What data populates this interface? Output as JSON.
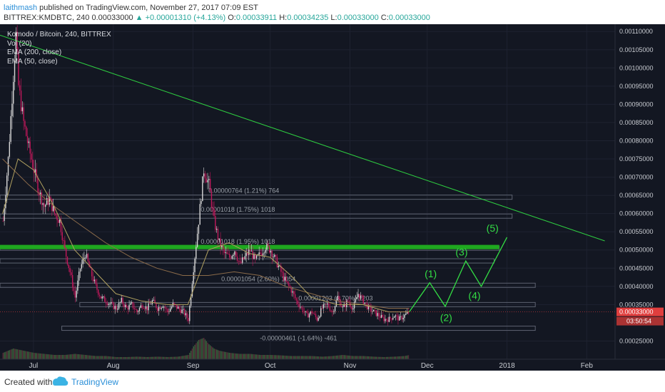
{
  "header": {
    "user": "laithmash",
    "published_text": "published on TradingView.com, November 27, 2017 07:09 EST",
    "symbol": "BITTREX:KMDBTC, 240",
    "last": "0.00033000",
    "change": "+0.00001310 (+4.13%)",
    "o_label": "O:",
    "o": "0.00033911",
    "h_label": "H:",
    "h": "0.00034235",
    "l_label": "L:",
    "l": "0.00033000",
    "c_label": "C:",
    "c": "0.00033000"
  },
  "footer": {
    "created_with": "Created with",
    "brand": "TradingView"
  },
  "colors": {
    "background": "#131722",
    "up_candle": "#d8d8d8",
    "down_candle": "#c2185b",
    "trendline": "#2ecc40",
    "wave": "#33dd44",
    "resistance_band": "#1fa81f",
    "ema200": "#8b6b4a",
    "ema50": "#b0a060",
    "last_price": "#e03e3e"
  },
  "chart_data": {
    "type": "candlestick",
    "title": "Komodo / Bitcoin, 240, BITTREX",
    "indicators": [
      "Vol (20)",
      "EMA (200, close)",
      "EMA (50, close)"
    ],
    "y_ticks": [
      "0.00110000",
      "0.00105000",
      "0.00100000",
      "0.00095000",
      "0.00090000",
      "0.00085000",
      "0.00080000",
      "0.00075000",
      "0.00070000",
      "0.00065000",
      "0.00060000",
      "0.00055000",
      "0.00050000",
      "0.00045000",
      "0.00040000",
      "0.00035000",
      "0.00025000"
    ],
    "ylim": [
      0.0002,
      0.00112
    ],
    "x_ticks": [
      {
        "label": "Jul",
        "day": 12
      },
      {
        "label": "Aug",
        "day": 43
      },
      {
        "label": "Sep",
        "day": 74
      },
      {
        "label": "Oct",
        "day": 104
      },
      {
        "label": "Nov",
        "day": 135
      },
      {
        "label": "Dec",
        "day": 165
      },
      {
        "label": "2018",
        "day": 196
      },
      {
        "label": "Feb",
        "day": 227
      }
    ],
    "xlim": [
      -1,
      238
    ],
    "price_series": [
      [
        0,
        0.00058
      ],
      [
        2,
        0.00075
      ],
      [
        4,
        0.00098
      ],
      [
        5,
        0.00109
      ],
      [
        6,
        0.00095
      ],
      [
        8,
        0.00085
      ],
      [
        10,
        0.00078
      ],
      [
        12,
        0.00072
      ],
      [
        14,
        0.00066
      ],
      [
        16,
        0.00062
      ],
      [
        18,
        0.00064
      ],
      [
        20,
        0.0006
      ],
      [
        22,
        0.00058
      ],
      [
        24,
        0.0005
      ],
      [
        26,
        0.00044
      ],
      [
        28,
        0.00037
      ],
      [
        30,
        0.00045
      ],
      [
        32,
        0.00049
      ],
      [
        34,
        0.00044
      ],
      [
        36,
        0.0004
      ],
      [
        38,
        0.00037
      ],
      [
        40,
        0.00036
      ],
      [
        42,
        0.00035
      ],
      [
        44,
        0.00034
      ],
      [
        46,
        0.00036
      ],
      [
        48,
        0.00034
      ],
      [
        50,
        0.00035
      ],
      [
        52,
        0.00033
      ],
      [
        54,
        0.00035
      ],
      [
        56,
        0.00034
      ],
      [
        58,
        0.00036
      ],
      [
        60,
        0.00034
      ],
      [
        62,
        0.00035
      ],
      [
        64,
        0.00033
      ],
      [
        66,
        0.00035
      ],
      [
        68,
        0.00034
      ],
      [
        70,
        0.00033
      ],
      [
        72,
        0.00031
      ],
      [
        74,
        0.00045
      ],
      [
        76,
        0.00058
      ],
      [
        78,
        0.00072
      ],
      [
        80,
        0.00068
      ],
      [
        82,
        0.00058
      ],
      [
        84,
        0.00052
      ],
      [
        86,
        0.00049
      ],
      [
        88,
        0.00048
      ],
      [
        90,
        0.0005
      ],
      [
        92,
        0.00046
      ],
      [
        94,
        0.00048
      ],
      [
        96,
        0.0005
      ],
      [
        98,
        0.00047
      ],
      [
        100,
        0.00049
      ],
      [
        102,
        0.00051
      ],
      [
        104,
        0.0005
      ],
      [
        106,
        0.00047
      ],
      [
        108,
        0.00044
      ],
      [
        110,
        0.00041
      ],
      [
        112,
        0.00039
      ],
      [
        114,
        0.00036
      ],
      [
        116,
        0.00034
      ],
      [
        118,
        0.00032
      ],
      [
        120,
        0.00033
      ],
      [
        122,
        0.00031
      ],
      [
        124,
        0.00034
      ],
      [
        126,
        0.00035
      ],
      [
        128,
        0.00033
      ],
      [
        130,
        0.00037
      ],
      [
        132,
        0.00034
      ],
      [
        134,
        0.00036
      ],
      [
        136,
        0.00034
      ],
      [
        138,
        0.00038
      ],
      [
        140,
        0.00036
      ],
      [
        142,
        0.00034
      ],
      [
        144,
        0.00033
      ],
      [
        146,
        0.00032
      ],
      [
        148,
        0.00031
      ],
      [
        150,
        0.00031
      ],
      [
        152,
        0.00032
      ],
      [
        154,
        0.00031
      ],
      [
        156,
        0.00032
      ],
      [
        158,
        0.00033
      ]
    ],
    "ema200": [
      [
        0,
        0.00075
      ],
      [
        10,
        0.00068
      ],
      [
        20,
        0.00062
      ],
      [
        30,
        0.00057
      ],
      [
        40,
        0.00052
      ],
      [
        50,
        0.00048
      ],
      [
        60,
        0.00045
      ],
      [
        70,
        0.00043
      ],
      [
        80,
        0.00043
      ],
      [
        90,
        0.00044
      ],
      [
        100,
        0.00043
      ],
      [
        110,
        0.0004
      ],
      [
        120,
        0.00038
      ],
      [
        130,
        0.00036
      ],
      [
        140,
        0.00035
      ],
      [
        150,
        0.00034
      ],
      [
        158,
        0.00034
      ]
    ],
    "ema50": [
      [
        0,
        0.0006
      ],
      [
        6,
        0.00075
      ],
      [
        12,
        0.00072
      ],
      [
        20,
        0.00062
      ],
      [
        28,
        0.0005
      ],
      [
        36,
        0.00044
      ],
      [
        44,
        0.00038
      ],
      [
        54,
        0.00036
      ],
      [
        64,
        0.00035
      ],
      [
        72,
        0.00035
      ],
      [
        80,
        0.0005
      ],
      [
        88,
        0.00052
      ],
      [
        96,
        0.00049
      ],
      [
        104,
        0.00048
      ],
      [
        112,
        0.00043
      ],
      [
        120,
        0.00037
      ],
      [
        130,
        0.00035
      ],
      [
        140,
        0.00035
      ],
      [
        150,
        0.00033
      ],
      [
        158,
        0.00033
      ]
    ],
    "volume_series": [
      [
        0,
        0.3
      ],
      [
        4,
        0.5
      ],
      [
        8,
        0.4
      ],
      [
        12,
        0.3
      ],
      [
        16,
        0.25
      ],
      [
        20,
        0.2
      ],
      [
        24,
        0.2
      ],
      [
        28,
        0.25
      ],
      [
        32,
        0.2
      ],
      [
        36,
        0.15
      ],
      [
        40,
        0.15
      ],
      [
        44,
        0.1
      ],
      [
        48,
        0.1
      ],
      [
        52,
        0.12
      ],
      [
        56,
        0.1
      ],
      [
        60,
        0.12
      ],
      [
        64,
        0.1
      ],
      [
        68,
        0.12
      ],
      [
        72,
        0.2
      ],
      [
        74,
        0.6
      ],
      [
        76,
        0.9
      ],
      [
        78,
        1.0
      ],
      [
        80,
        0.7
      ],
      [
        82,
        0.5
      ],
      [
        84,
        0.4
      ],
      [
        88,
        0.3
      ],
      [
        92,
        0.25
      ],
      [
        96,
        0.25
      ],
      [
        100,
        0.2
      ],
      [
        104,
        0.2
      ],
      [
        108,
        0.18
      ],
      [
        112,
        0.15
      ],
      [
        116,
        0.15
      ],
      [
        120,
        0.15
      ],
      [
        124,
        0.12
      ],
      [
        128,
        0.15
      ],
      [
        132,
        0.2
      ],
      [
        136,
        0.15
      ],
      [
        140,
        0.15
      ],
      [
        144,
        0.12
      ],
      [
        148,
        0.1
      ],
      [
        152,
        0.12
      ],
      [
        156,
        0.15
      ],
      [
        158,
        0.2
      ]
    ],
    "trendline": {
      "from": [
        -1,
        0.00109
      ],
      "to": [
        234,
        0.000525
      ]
    },
    "resistance_band": {
      "from_day": -1,
      "to_day": 193,
      "low": 0.000502,
      "high": 0.000514
    },
    "fib_levels": [
      {
        "price": 0.000645,
        "from_day": -1,
        "to_day": 198,
        "label": "0.00000764 (1.21%) 764",
        "label_day": 80
      },
      {
        "price": 0.000593,
        "from_day": -1,
        "to_day": 198,
        "label": "0.00001018 (1.75%) 1018",
        "label_day": 77
      },
      {
        "price": 0.000505,
        "from_day": -1,
        "to_day": 193,
        "label": "0.00001018 (1.95%) 1018",
        "label_day": 77
      },
      {
        "price": 0.00047,
        "from_day": -1,
        "to_day": 191,
        "label": "",
        "label_day": 0
      },
      {
        "price": 0.000403,
        "from_day": -1,
        "to_day": 207,
        "label": "0.00001054 (2.60%) 1054",
        "label_day": 85
      },
      {
        "price": 0.00035,
        "from_day": 30,
        "to_day": 207,
        "label": "0.00001203 (3.70%) 1203",
        "label_day": 115
      },
      {
        "price": 0.000285,
        "from_day": 23,
        "to_day": 207,
        "label": "",
        "label_day": 0
      }
    ],
    "bottom_label": {
      "text": "-0.00000461 (-1.64%) -461",
      "day": 100,
      "price": 0.000252
    },
    "wave_path": [
      [
        158,
        0.00033
      ],
      [
        166,
        0.00041
      ],
      [
        172,
        0.000345
      ],
      [
        180,
        0.00047
      ],
      [
        186,
        0.0004
      ],
      [
        196,
        0.000535
      ]
    ],
    "wave_labels": [
      {
        "text": "(1)",
        "day": 164,
        "price": 0.000425
      },
      {
        "text": "(2)",
        "day": 170,
        "price": 0.000305
      },
      {
        "text": "(3)",
        "day": 176,
        "price": 0.000485
      },
      {
        "text": "(4)",
        "day": 181,
        "price": 0.000365
      },
      {
        "text": "(5)",
        "day": 188,
        "price": 0.00055
      }
    ],
    "last_price_line": {
      "price": 0.00033,
      "label": "0.00033000",
      "timer": "03:50:54"
    }
  }
}
